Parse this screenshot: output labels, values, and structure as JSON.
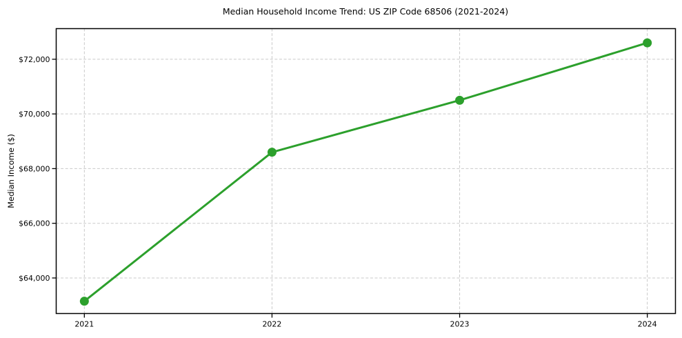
{
  "figure": {
    "background": "#ffffff"
  },
  "chart_data": {
    "type": "line",
    "title": "Median Household Income Trend: US ZIP Code 68506 (2021-2024)",
    "xlabel": "",
    "ylabel": "Median Income ($)",
    "x": [
      2021,
      2022,
      2023,
      2024
    ],
    "series": [
      {
        "name": "Median Household Income",
        "values": [
          63150,
          68600,
          70500,
          72600
        ],
        "color": "#2ca02c",
        "marker": "circle",
        "line_width": 3,
        "marker_radius": 6.5
      }
    ],
    "xlim": [
      2020.85,
      2024.15
    ],
    "ylim": [
      62700,
      73120
    ],
    "xticks": [
      2021,
      2022,
      2023,
      2024
    ],
    "xtick_labels": [
      "2021",
      "2022",
      "2023",
      "2024"
    ],
    "yticks": [
      64000,
      66000,
      68000,
      70000,
      72000
    ],
    "ytick_labels": [
      "$64,000",
      "$66,000",
      "$68,000",
      "$70,000",
      "$72,000"
    ],
    "grid": true,
    "grid_color": "#c9c9c9",
    "grid_style": "dashed",
    "spine_color": "#000000",
    "tick_color": "#000000",
    "legend": null
  }
}
